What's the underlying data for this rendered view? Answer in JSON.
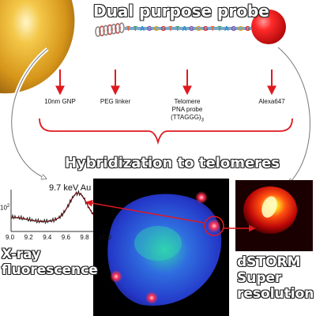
{
  "title": "Dual purpose probe",
  "sequence": "TTAGGGTTAGGGTTAGGG",
  "components": {
    "gnp": "10nm GNP",
    "peg": "PEG linker",
    "pna_line1": "Telomere",
    "pna_line2": "PNA probe",
    "pna_line3": "(TTAGGG)",
    "pna_sub": "3",
    "alexa": "Alexa647"
  },
  "hybridization": "Hybridization to telomeres",
  "xrf": {
    "peak_label": "9.7 keV Au",
    "y_tick": "10",
    "y_tick_exp": "2",
    "x_ticks": [
      "9.0",
      "9.2",
      "9.4",
      "9.6",
      "9.8",
      "10.0"
    ],
    "caption_line1": "X-ray",
    "caption_line2": "fluorescence"
  },
  "storm": {
    "caption_line1": "dSTORM",
    "caption_line2": "Super",
    "caption_line3": "resolution"
  },
  "colors": {
    "gold": "#d69a1c",
    "red_dye": "#e8141c",
    "arrow_red": "#e0191f",
    "nucleus_blue": "#2f3fd6",
    "teal": "#28b8a8",
    "seq_palette": [
      "#f05a28",
      "#2aa84a",
      "#1e88d8",
      "#8e44ad",
      "#e0a100",
      "#e0191f"
    ]
  }
}
